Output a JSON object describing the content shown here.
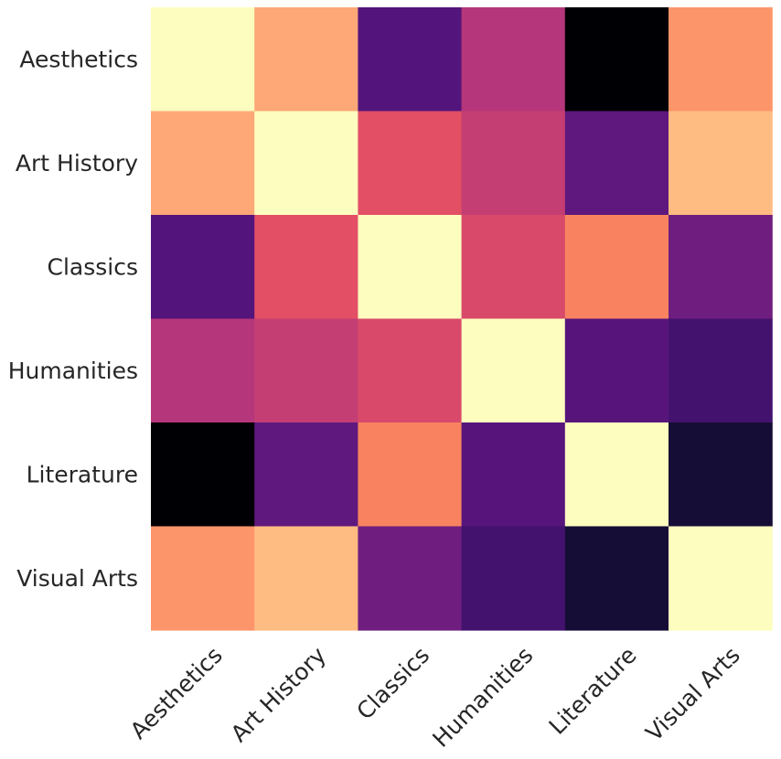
{
  "chart_data": {
    "type": "heatmap",
    "title": "",
    "xlabel": "",
    "ylabel": "",
    "x_categories": [
      "Aesthetics",
      "Art History",
      "Classics",
      "Humanities",
      "Literature",
      "Visual Arts"
    ],
    "y_categories": [
      "Aesthetics",
      "Art History",
      "Classics",
      "Humanities",
      "Literature",
      "Visual Arts"
    ],
    "colormap": "magma",
    "value_range": [
      0,
      1
    ],
    "values": [
      [
        1.0,
        0.82,
        0.26,
        0.5,
        0.0,
        0.78
      ],
      [
        0.82,
        1.0,
        0.62,
        0.54,
        0.29,
        0.86
      ],
      [
        0.26,
        0.62,
        1.0,
        0.59,
        0.74,
        0.33
      ],
      [
        0.5,
        0.54,
        0.59,
        1.0,
        0.27,
        0.22
      ],
      [
        0.0,
        0.29,
        0.74,
        0.27,
        1.0,
        0.1
      ],
      [
        0.78,
        0.86,
        0.33,
        0.22,
        0.1,
        1.0
      ]
    ],
    "grid": false,
    "legend": "none"
  }
}
